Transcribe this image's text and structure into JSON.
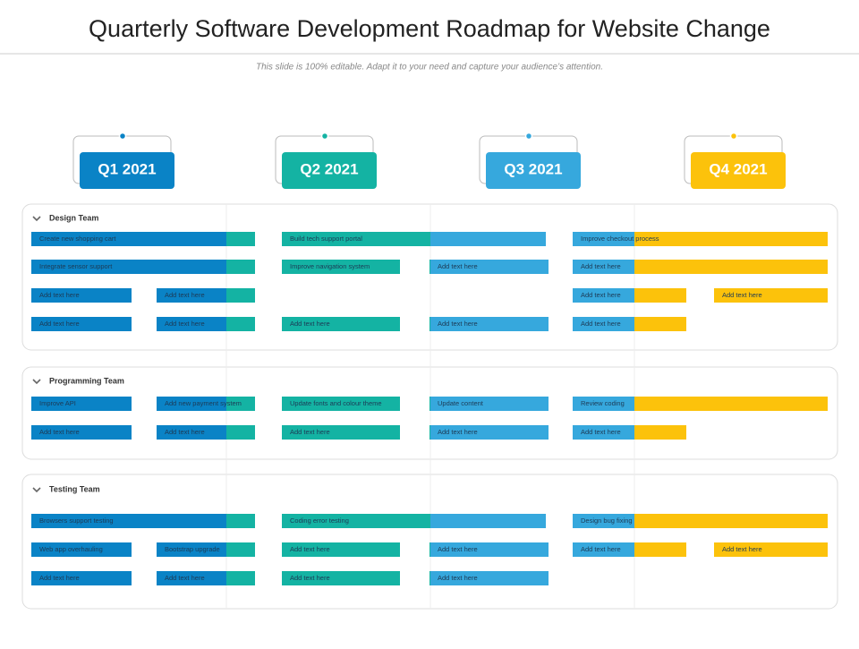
{
  "header": {
    "title": "Quarterly Software Development Roadmap for Website Change",
    "subtitle": "This slide is 100% editable. Adapt it to your need and capture your audience’s attention."
  },
  "quarters": [
    "Q1 2021",
    "Q2 2021",
    "Q3 2021",
    "Q4 2021"
  ],
  "groups": [
    {
      "name": "Design Team",
      "rows": [
        [
          "Create new shopping cart",
          "Build tech support portal",
          "Improve checkout process"
        ],
        [
          "Integrate sensor support",
          "Improve navigation system",
          "Add text here",
          "Add text here"
        ],
        [
          "Add text here",
          "Add text here",
          "Add text here",
          "Add text here"
        ],
        [
          "Add text here",
          "Add text here",
          "Add text here",
          "Add text here",
          "Add text here"
        ]
      ]
    },
    {
      "name": "Programming Team",
      "rows": [
        [
          "Improve API",
          "Add new payment system",
          "Update fonts and colour theme",
          "Update content",
          "Review coding"
        ],
        [
          "Add text here",
          "Add text here",
          "Add text here",
          "Add text here",
          "Add text here"
        ]
      ]
    },
    {
      "name": "Testing Team",
      "rows": [
        [
          "Browsers support testing",
          "Coding error testing",
          "Design bug fixing"
        ],
        [
          "Web app overhauling",
          "Bootstrap upgrade",
          "Add text here",
          "Add text here",
          "Add text here",
          "Add text here"
        ],
        [
          "Add text here",
          "Add text here",
          "Add text here",
          "Add text here"
        ]
      ]
    }
  ]
}
